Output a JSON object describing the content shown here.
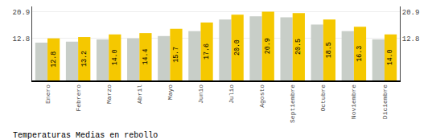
{
  "chart_data": {
    "type": "bar",
    "title": "Temperaturas Medias en rebollo",
    "categories": [
      "Enero",
      "Febrero",
      "Marzo",
      "Abril",
      "Mayo",
      "Junio",
      "Julio",
      "Agosto",
      "Septiembre",
      "Octubre",
      "Noviembre",
      "Diciembre"
    ],
    "series": [
      {
        "color": "#C8CEC8",
        "values": [
          11.5,
          11.8,
          12.5,
          12.8,
          13.5,
          15.0,
          18.5,
          19.5,
          19.2,
          17.0,
          15.0,
          12.5
        ]
      },
      {
        "color": "#F5C800",
        "values": [
          12.8,
          13.2,
          14.0,
          14.4,
          15.7,
          17.6,
          20.0,
          20.9,
          20.5,
          18.5,
          16.3,
          14.0
        ],
        "data_labels": true,
        "value_labels": [
          "12.8",
          "13.2",
          "14.0",
          "14.4",
          "15.7",
          "17.6",
          "20.0",
          "20.9",
          "20.5",
          "18.5",
          "16.3",
          "14.0"
        ]
      }
    ],
    "ylim": [
      0,
      22.5
    ],
    "yticks": [
      12.8,
      20.9
    ],
    "y2lim": [
      0,
      22.5
    ],
    "y2ticks": [
      12.8,
      20.9
    ],
    "grid": true
  }
}
